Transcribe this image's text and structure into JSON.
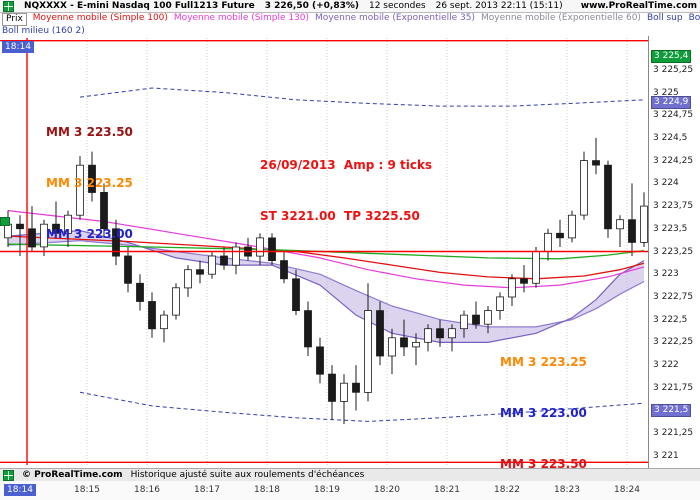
{
  "window": {
    "title": "NQXXXX - E-mini Nasdaq 100 Full1213 Future",
    "last_price": "3 226,50 (+0,83%)",
    "timeframe": "12 secondes",
    "datetime": "26 sept. 2013 22:11 (15:11)",
    "website": "www.ProRealTime.com"
  },
  "legend": {
    "price_label": "Prix",
    "row1": [
      {
        "label": "Moyenne mobile (Simple 100)",
        "color": "#e01010"
      },
      {
        "label": "Moyenne mobile (Simple 130)",
        "color": "#e63bd9"
      },
      {
        "label": "Moyenne mobile (Exponentielle 35)",
        "color": "#7a5fc0"
      },
      {
        "label": "Moyenne mobile (Exponentielle 60)",
        "color": "#8a8a9a"
      },
      {
        "label": "Boll sup",
        "color": "#2f3fae"
      },
      {
        "label": "Boll inf",
        "color": "#2f3fae"
      }
    ],
    "row2": [
      {
        "label": "Boll milieu (160 2)",
        "color": "#2f3fae"
      }
    ]
  },
  "annotations": {
    "upper_left": [
      {
        "text": "MM 3 223.50",
        "color": "#991111"
      },
      {
        "text": "MM 3 223.25",
        "color": "#ff8800"
      },
      {
        "text": "MM 3 223.00",
        "color": "#2222cc"
      }
    ],
    "center": [
      {
        "text": "26/09/2013  Amp : 9 ticks",
        "color": "#ee1111"
      },
      {
        "text": "ST 3221.00  TP 3225.50",
        "color": "#ee1111"
      }
    ],
    "lower_right": [
      {
        "text": "MM 3 223.25",
        "color": "#ff8800"
      },
      {
        "text": "MM 3 223.00",
        "color": "#2222cc"
      },
      {
        "text": "MM 3 223.50",
        "color": "#dd1111"
      }
    ]
  },
  "price_axis": {
    "ticks": [
      {
        "text": "3 225,25",
        "price": 3225.25
      },
      {
        "text": "3 225",
        "price": 3225.0
      },
      {
        "text": "3 224,75",
        "price": 3224.75
      },
      {
        "text": "3 224,5",
        "price": 3224.5
      },
      {
        "text": "3 224,25",
        "price": 3224.25
      },
      {
        "text": "3 224",
        "price": 3224.0
      },
      {
        "text": "3 223,75",
        "price": 3223.75
      },
      {
        "text": "3 223,5",
        "price": 3223.5
      },
      {
        "text": "3 223,25",
        "price": 3223.25
      },
      {
        "text": "3 223",
        "price": 3223.0
      },
      {
        "text": "3 222,75",
        "price": 3222.75
      },
      {
        "text": "3 222,5",
        "price": 3222.5
      },
      {
        "text": "3 222,25",
        "price": 3222.25
      },
      {
        "text": "3 222",
        "price": 3222.0
      },
      {
        "text": "3 221,75",
        "price": 3221.75
      },
      {
        "text": "3 221,5",
        "price": 3221.5
      },
      {
        "text": "3 221,25",
        "price": 3221.25
      },
      {
        "text": "3 221",
        "price": 3221.0
      }
    ],
    "badges": [
      {
        "text": "3 225,4",
        "price": 3225.4,
        "bg": "#0f9d3a"
      },
      {
        "text": "3 224,9",
        "price": 3224.9,
        "bg": "#7070d0"
      },
      {
        "text": "3 221,5",
        "price": 3221.5,
        "bg": "#7070d0"
      }
    ]
  },
  "time_axis": {
    "badge": "18:14",
    "labels": [
      "18:15",
      "18:16",
      "18:17",
      "18:18",
      "18:19",
      "18:20",
      "18:21",
      "18:22",
      "18:23",
      "18:24"
    ]
  },
  "footer": {
    "copyright": "© ProRealTime.com",
    "notice": "Historique ajusté suite aux roulements d'échéances"
  },
  "chart_data": {
    "type": "candlestick",
    "title": "NQXXXX - E-mini Nasdaq 100 Full1213 Future",
    "timeframe_seconds": 12,
    "vertical_line_time": "18:14",
    "price_range": {
      "top": 3225.6,
      "bottom": 3220.9
    },
    "ohlc_format": [
      "open",
      "high",
      "low",
      "close"
    ],
    "candles": [
      [
        3223.4,
        3223.7,
        3223.3,
        3223.55
      ],
      [
        3223.55,
        3223.65,
        3223.2,
        3223.5
      ],
      [
        3223.5,
        3223.75,
        3223.25,
        3223.3
      ],
      [
        3223.3,
        3223.6,
        3223.2,
        3223.55
      ],
      [
        3223.55,
        3223.8,
        3223.4,
        3223.45
      ],
      [
        3223.45,
        3223.7,
        3223.3,
        3223.65
      ],
      [
        3223.65,
        3224.3,
        3223.6,
        3224.2
      ],
      [
        3224.2,
        3224.35,
        3223.8,
        3223.9
      ],
      [
        3223.9,
        3224.0,
        3223.4,
        3223.5
      ],
      [
        3223.5,
        3223.6,
        3223.1,
        3223.2
      ],
      [
        3223.2,
        3223.3,
        3222.8,
        3222.9
      ],
      [
        3222.9,
        3223.0,
        3222.6,
        3222.7
      ],
      [
        3222.7,
        3222.8,
        3222.3,
        3222.4
      ],
      [
        3222.4,
        3222.6,
        3222.25,
        3222.55
      ],
      [
        3222.55,
        3222.9,
        3222.5,
        3222.85
      ],
      [
        3222.85,
        3223.1,
        3222.75,
        3223.05
      ],
      [
        3223.05,
        3223.15,
        3222.9,
        3223.0
      ],
      [
        3223.0,
        3223.25,
        3222.95,
        3223.2
      ],
      [
        3223.2,
        3223.3,
        3223.05,
        3223.1
      ],
      [
        3223.1,
        3223.35,
        3223.0,
        3223.3
      ],
      [
        3223.3,
        3223.4,
        3223.15,
        3223.2
      ],
      [
        3223.2,
        3223.45,
        3223.1,
        3223.4
      ],
      [
        3223.4,
        3223.45,
        3223.1,
        3223.15
      ],
      [
        3223.15,
        3223.25,
        3222.9,
        3222.95
      ],
      [
        3222.95,
        3223.05,
        3222.55,
        3222.6
      ],
      [
        3222.6,
        3222.7,
        3222.1,
        3222.2
      ],
      [
        3222.2,
        3222.3,
        3221.8,
        3221.9
      ],
      [
        3221.9,
        3222.0,
        3221.4,
        3221.6
      ],
      [
        3221.6,
        3221.9,
        3221.35,
        3221.8
      ],
      [
        3221.8,
        3222.0,
        3221.5,
        3221.7
      ],
      [
        3221.7,
        3222.9,
        3221.6,
        3222.6
      ],
      [
        3222.6,
        3222.7,
        3222.0,
        3222.1
      ],
      [
        3222.1,
        3222.4,
        3221.9,
        3222.3
      ],
      [
        3222.3,
        3222.5,
        3222.1,
        3222.2
      ],
      [
        3222.2,
        3222.35,
        3222.0,
        3222.25
      ],
      [
        3222.25,
        3222.45,
        3222.15,
        3222.4
      ],
      [
        3222.4,
        3222.5,
        3222.2,
        3222.3
      ],
      [
        3222.3,
        3222.45,
        3222.15,
        3222.4
      ],
      [
        3222.4,
        3222.6,
        3222.3,
        3222.55
      ],
      [
        3222.55,
        3222.7,
        3222.4,
        3222.45
      ],
      [
        3222.45,
        3222.65,
        3222.35,
        3222.6
      ],
      [
        3222.6,
        3222.8,
        3222.5,
        3222.75
      ],
      [
        3222.75,
        3223.0,
        3222.65,
        3222.95
      ],
      [
        3222.95,
        3223.1,
        3222.8,
        3222.9
      ],
      [
        3222.9,
        3223.3,
        3222.85,
        3223.25
      ],
      [
        3223.25,
        3223.5,
        3223.15,
        3223.45
      ],
      [
        3223.45,
        3223.6,
        3223.3,
        3223.4
      ],
      [
        3223.4,
        3223.7,
        3223.35,
        3223.65
      ],
      [
        3223.65,
        3224.35,
        3223.6,
        3224.25
      ],
      [
        3224.25,
        3224.5,
        3224.1,
        3224.2
      ],
      [
        3224.2,
        3224.25,
        3223.4,
        3223.5
      ],
      [
        3223.5,
        3223.65,
        3223.3,
        3223.6
      ],
      [
        3223.6,
        3224.0,
        3223.2,
        3223.35
      ],
      [
        3223.35,
        3223.9,
        3223.3,
        3223.75
      ]
    ],
    "overlays": [
      {
        "name": "sma100",
        "color": "#e01010",
        "width": 1.3,
        "points": [
          [
            0,
            3223.42
          ],
          [
            10,
            3223.36
          ],
          [
            18,
            3223.3
          ],
          [
            24,
            3223.25
          ],
          [
            28,
            3223.18
          ],
          [
            32,
            3223.1
          ],
          [
            36,
            3223.02
          ],
          [
            40,
            3222.97
          ],
          [
            44,
            3222.95
          ],
          [
            48,
            3222.98
          ],
          [
            51,
            3223.05
          ],
          [
            53,
            3223.12
          ]
        ]
      },
      {
        "name": "ma-green",
        "color": "#1faa1f",
        "width": 1.3,
        "points": [
          [
            0,
            3223.33
          ],
          [
            12,
            3223.3
          ],
          [
            22,
            3223.27
          ],
          [
            32,
            3223.22
          ],
          [
            40,
            3223.18
          ],
          [
            46,
            3223.17
          ],
          [
            50,
            3223.21
          ],
          [
            53,
            3223.26
          ]
        ]
      },
      {
        "name": "sma130",
        "color": "#e63bd9",
        "width": 1.2,
        "points": [
          [
            0,
            3223.7
          ],
          [
            8,
            3223.58
          ],
          [
            14,
            3223.45
          ],
          [
            20,
            3223.32
          ],
          [
            26,
            3223.18
          ],
          [
            30,
            3223.05
          ],
          [
            34,
            3222.95
          ],
          [
            38,
            3222.88
          ],
          [
            42,
            3222.85
          ],
          [
            46,
            3222.88
          ],
          [
            50,
            3222.97
          ],
          [
            53,
            3223.08
          ]
        ]
      },
      {
        "name": "ema35",
        "color": "#7a5fc0",
        "width": 1.2,
        "points": [
          [
            0,
            3223.42
          ],
          [
            6,
            3223.48
          ],
          [
            10,
            3223.35
          ],
          [
            14,
            3223.18
          ],
          [
            18,
            3223.1
          ],
          [
            22,
            3223.1
          ],
          [
            26,
            3222.88
          ],
          [
            29,
            3222.55
          ],
          [
            32,
            3222.35
          ],
          [
            36,
            3222.25
          ],
          [
            40,
            3222.25
          ],
          [
            44,
            3222.35
          ],
          [
            47,
            3222.52
          ],
          [
            49,
            3222.72
          ],
          [
            51,
            3223.0
          ],
          [
            53,
            3223.15
          ]
        ]
      },
      {
        "name": "ema60",
        "color": "#8f7bd0",
        "width": 1.2,
        "points": [
          [
            0,
            3223.32
          ],
          [
            6,
            3223.37
          ],
          [
            10,
            3223.32
          ],
          [
            14,
            3223.25
          ],
          [
            18,
            3223.18
          ],
          [
            22,
            3223.12
          ],
          [
            26,
            3223.0
          ],
          [
            29,
            3222.82
          ],
          [
            32,
            3222.65
          ],
          [
            36,
            3222.5
          ],
          [
            40,
            3222.42
          ],
          [
            44,
            3222.42
          ],
          [
            47,
            3222.5
          ],
          [
            49,
            3222.62
          ],
          [
            51,
            3222.78
          ],
          [
            53,
            3222.92
          ]
        ]
      },
      {
        "name": "boll-sup",
        "color": "#2f3fae",
        "width": 1,
        "dash": "4,3",
        "points": [
          [
            6,
            3224.95
          ],
          [
            12,
            3225.05
          ],
          [
            18,
            3225.0
          ],
          [
            24,
            3224.92
          ],
          [
            30,
            3224.88
          ],
          [
            36,
            3224.85
          ],
          [
            42,
            3224.85
          ],
          [
            47,
            3224.88
          ],
          [
            53,
            3224.92
          ]
        ]
      },
      {
        "name": "boll-inf",
        "color": "#2f3fae",
        "width": 1,
        "dash": "4,3",
        "points": [
          [
            6,
            3221.7
          ],
          [
            12,
            3221.55
          ],
          [
            18,
            3221.48
          ],
          [
            24,
            3221.42
          ],
          [
            30,
            3221.38
          ],
          [
            36,
            3221.42
          ],
          [
            42,
            3221.47
          ],
          [
            47,
            3221.52
          ],
          [
            53,
            3221.58
          ]
        ]
      }
    ],
    "band": {
      "upper": "ema35",
      "lower": "ema60",
      "fill": "#b9a7e0",
      "opacity": 0.5
    },
    "levels": {
      "horizontal": [
        {
          "price": 3225.57,
          "color": "#ff0000"
        },
        {
          "price": 3223.25,
          "color": "#ff0000"
        },
        {
          "price": 3220.93,
          "color": "#ff0000"
        }
      ]
    }
  }
}
